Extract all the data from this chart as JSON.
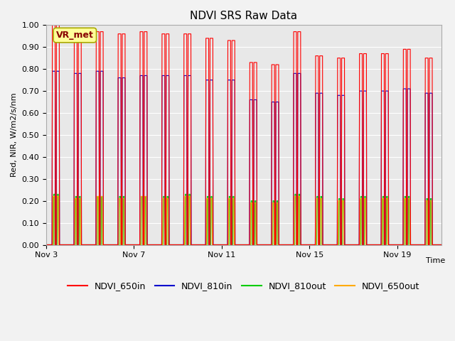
{
  "title": "NDVI SRS Raw Data",
  "ylabel": "Red, NIR, W/m2/s/nm",
  "xlabel": "Time",
  "ylim": [
    0.0,
    1.0
  ],
  "yticks": [
    0.0,
    0.1,
    0.2,
    0.3,
    0.4,
    0.5,
    0.6,
    0.7,
    0.8,
    0.9,
    1.0
  ],
  "plot_bg": "#e8e8e8",
  "fig_bg": "#f2f2f2",
  "grid_color": "#ffffff",
  "series": {
    "NDVI_650in": {
      "color": "#ff0000",
      "lw": 0.8
    },
    "NDVI_810in": {
      "color": "#0000cc",
      "lw": 0.8
    },
    "NDVI_810out": {
      "color": "#00cc00",
      "lw": 0.8
    },
    "NDVI_650out": {
      "color": "#ffaa00",
      "lw": 0.8
    }
  },
  "vr_met_label": "VR_met",
  "xtick_labels": [
    "Nov 3",
    "Nov 7",
    "Nov 11",
    "Nov 15",
    "Nov 19"
  ],
  "xtick_days": [
    3,
    7,
    11,
    15,
    19
  ],
  "day_start": 3,
  "n_cycles": 18,
  "peaks_650in": [
    1.0,
    0.98,
    0.97,
    0.96,
    0.97,
    0.96,
    0.96,
    0.94,
    0.93,
    0.83,
    0.82,
    0.97,
    0.86,
    0.85,
    0.87,
    0.87,
    0.89,
    0.85
  ],
  "peaks_810in": [
    0.79,
    0.78,
    0.79,
    0.76,
    0.77,
    0.77,
    0.77,
    0.75,
    0.75,
    0.66,
    0.65,
    0.78,
    0.69,
    0.68,
    0.7,
    0.7,
    0.71,
    0.69
  ],
  "peaks_810out": [
    0.23,
    0.22,
    0.22,
    0.22,
    0.22,
    0.22,
    0.23,
    0.22,
    0.22,
    0.2,
    0.2,
    0.23,
    0.22,
    0.21,
    0.22,
    0.22,
    0.22,
    0.21
  ],
  "peaks_650out": [
    0.22,
    0.21,
    0.22,
    0.21,
    0.22,
    0.21,
    0.22,
    0.21,
    0.21,
    0.19,
    0.19,
    0.22,
    0.21,
    0.2,
    0.21,
    0.21,
    0.21,
    0.2
  ]
}
